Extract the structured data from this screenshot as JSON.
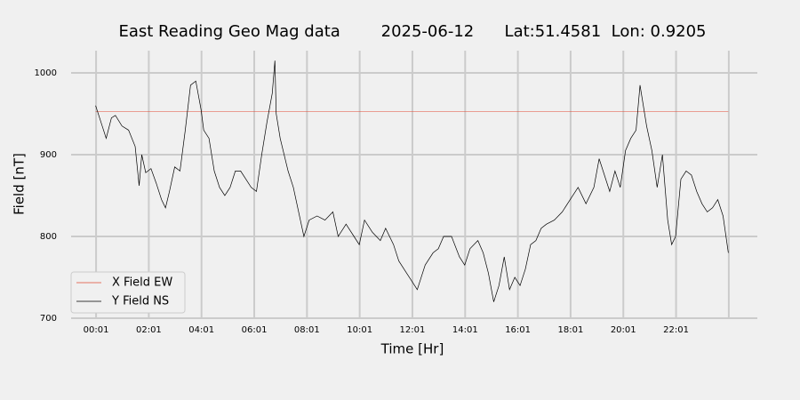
{
  "chart_data": {
    "type": "line",
    "title": "East Reading Geo Mag data        2025-06-12      Lat:51.4581  Lon: 0.9205",
    "x_label": "Time  [Hr]",
    "y_label": "Field  [nT]",
    "xlim": [
      -0.93,
      25.1
    ],
    "ylim": [
      700,
      1025
    ],
    "yticks": [
      700,
      800,
      900,
      1000
    ],
    "xticks": [
      {
        "value": 0.0167,
        "label": "00:01"
      },
      {
        "value": 2.0167,
        "label": "02:01"
      },
      {
        "value": 4.0167,
        "label": "04:01"
      },
      {
        "value": 6.0167,
        "label": "06:01"
      },
      {
        "value": 8.0167,
        "label": "08:01"
      },
      {
        "value": 10.0167,
        "label": "10:01"
      },
      {
        "value": 12.0167,
        "label": "12:01"
      },
      {
        "value": 14.0167,
        "label": "14:01"
      },
      {
        "value": 16.0167,
        "label": "16:01"
      },
      {
        "value": 18.0167,
        "label": "18:01"
      },
      {
        "value": 20.0167,
        "label": "20:01"
      },
      {
        "value": 22.0167,
        "label": "22:01"
      },
      {
        "value": 24.0167,
        "label": null
      }
    ],
    "grid": true,
    "legend": "lower left",
    "series": [
      {
        "name": "X Field EW",
        "color": "#e24a33",
        "x": [
          0,
          24
        ],
        "values": [
          953,
          953
        ]
      },
      {
        "name": "Y Field NS",
        "color": "#000000",
        "x": [
          0,
          0.25,
          0.4,
          0.6,
          0.75,
          1.0,
          1.25,
          1.5,
          1.65,
          1.75,
          1.9,
          2.1,
          2.3,
          2.5,
          2.65,
          2.8,
          3.0,
          3.2,
          3.4,
          3.6,
          3.8,
          4.0,
          4.1,
          4.3,
          4.5,
          4.7,
          4.9,
          5.1,
          5.3,
          5.5,
          5.7,
          5.9,
          6.1,
          6.3,
          6.5,
          6.7,
          6.8,
          6.85,
          7.0,
          7.3,
          7.5,
          7.7,
          7.9,
          8.1,
          8.4,
          8.7,
          9.0,
          9.2,
          9.5,
          9.8,
          10.0,
          10.2,
          10.5,
          10.8,
          11.0,
          11.3,
          11.5,
          11.8,
          12.0,
          12.2,
          12.5,
          12.8,
          13.0,
          13.2,
          13.5,
          13.8,
          14.0,
          14.2,
          14.5,
          14.7,
          14.9,
          15.1,
          15.3,
          15.5,
          15.7,
          15.9,
          16.1,
          16.3,
          16.5,
          16.7,
          16.9,
          17.1,
          17.4,
          17.7,
          18.0,
          18.3,
          18.6,
          18.9,
          19.1,
          19.3,
          19.5,
          19.7,
          19.9,
          20.1,
          20.3,
          20.5,
          20.65,
          20.9,
          21.1,
          21.3,
          21.5,
          21.7,
          21.85,
          22.0,
          22.2,
          22.4,
          22.6,
          22.8,
          23.0,
          23.2,
          23.4,
          23.6,
          23.8,
          24.0
        ],
        "values": [
          960,
          935,
          920,
          945,
          948,
          935,
          930,
          910,
          862,
          900,
          878,
          883,
          865,
          845,
          835,
          855,
          885,
          880,
          930,
          985,
          990,
          955,
          930,
          920,
          880,
          860,
          850,
          860,
          880,
          880,
          870,
          860,
          855,
          900,
          940,
          975,
          1015,
          950,
          920,
          880,
          860,
          830,
          800,
          820,
          825,
          820,
          830,
          800,
          815,
          800,
          790,
          820,
          805,
          795,
          810,
          790,
          770,
          755,
          745,
          735,
          765,
          780,
          785,
          800,
          800,
          775,
          765,
          785,
          795,
          780,
          755,
          720,
          740,
          775,
          735,
          750,
          740,
          760,
          790,
          795,
          810,
          815,
          820,
          830,
          845,
          860,
          840,
          860,
          895,
          875,
          855,
          880,
          860,
          905,
          920,
          930,
          985,
          935,
          905,
          860,
          900,
          820,
          790,
          800,
          870,
          880,
          875,
          855,
          840,
          830,
          835,
          845,
          825,
          780
        ]
      }
    ]
  }
}
